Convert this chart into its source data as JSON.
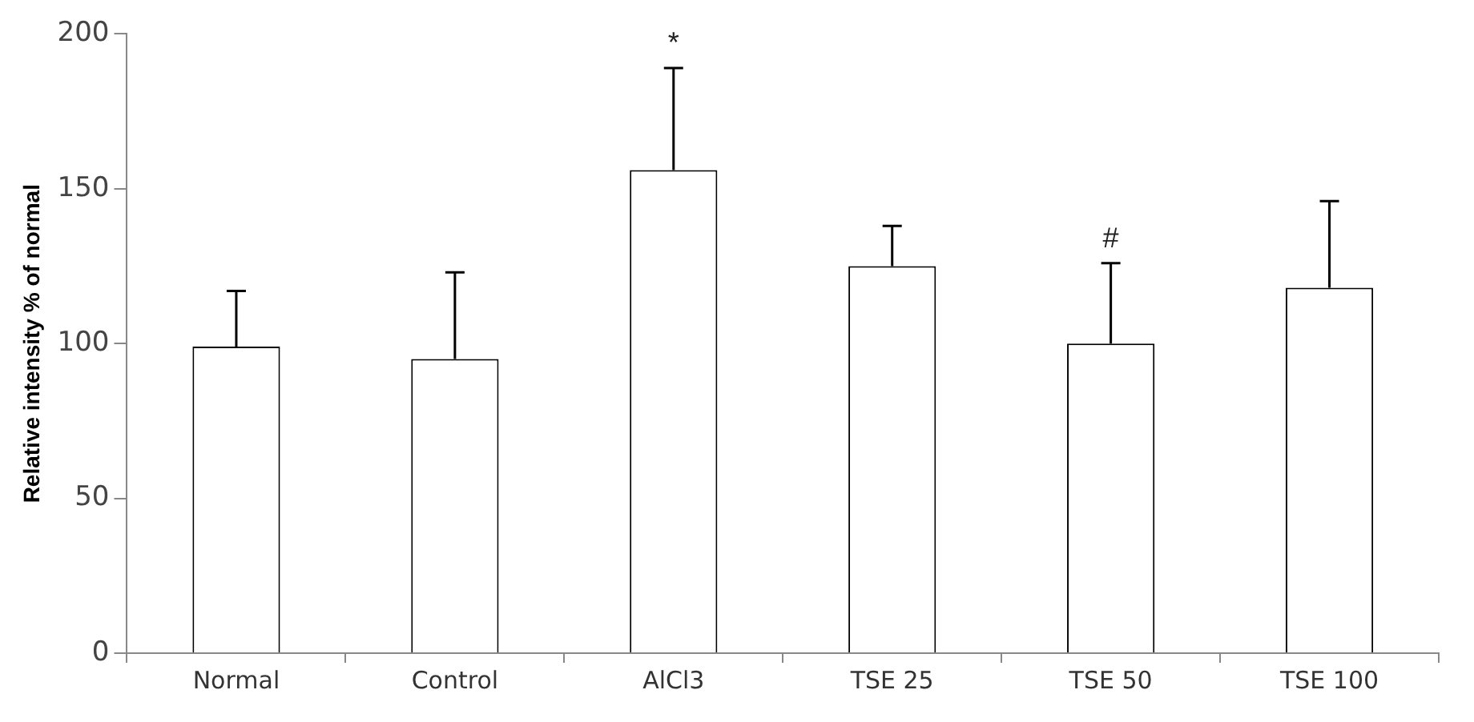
{
  "chart_data": {
    "type": "bar",
    "ylabel": "Relative intensity % of normal",
    "categories": [
      "Normal",
      "Control",
      "AlCl3",
      "TSE 25",
      "TSE 50",
      "TSE 100"
    ],
    "values": [
      99,
      95,
      156,
      125,
      100,
      118
    ],
    "errors": [
      [
        99,
        117
      ],
      [
        95,
        123
      ],
      [
        156,
        189
      ],
      [
        125,
        138
      ],
      [
        100,
        126
      ],
      [
        118,
        146
      ]
    ],
    "color": "#ffffff",
    "ylim": [
      0,
      200
    ],
    "yticks": [
      0,
      50,
      100,
      150,
      200
    ],
    "grid": false,
    "legend": false,
    "annotations": [
      {
        "text": "*",
        "x": "AlCl3",
        "y": 189
      },
      {
        "text": "#",
        "x": "TSE 50",
        "y": 126
      }
    ]
  }
}
